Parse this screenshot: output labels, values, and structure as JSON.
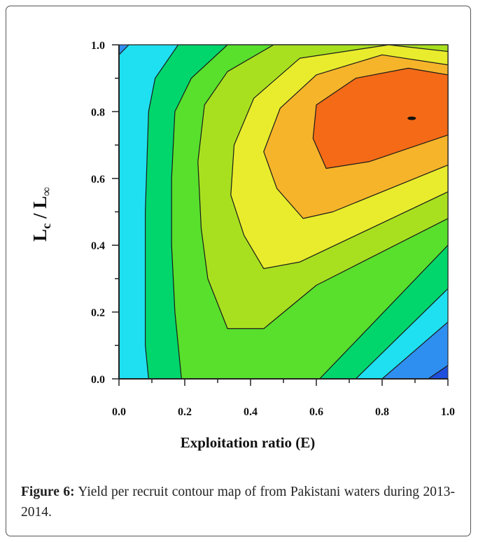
{
  "chart_data": {
    "type": "contour",
    "xlabel": "Exploitation ratio (E)",
    "ylabel_main": "L",
    "ylabel_sub": "c",
    "ylabel_mid": " / L",
    "ylabel_sub2": "∞",
    "xlim": [
      0.0,
      1.0
    ],
    "ylim": [
      0.0,
      1.0
    ],
    "xticks": [
      "0.0",
      "0.2",
      "0.4",
      "0.6",
      "0.8",
      "1.0"
    ],
    "yticks": [
      "0.0",
      "0.2",
      "0.4",
      "0.6",
      "0.8",
      "1.0"
    ],
    "grid": false,
    "levels": [
      {
        "color": "#1f4fdc",
        "points": [
          [
            0.0,
            0.0
          ],
          [
            1.0,
            0.0
          ],
          [
            1.0,
            1.0
          ],
          [
            0.0,
            1.0
          ]
        ]
      },
      {
        "color": "#2f8ff0",
        "points": [
          [
            0.0,
            0.0
          ],
          [
            0.94,
            0.0
          ],
          [
            1.0,
            0.04
          ],
          [
            1.0,
            1.0
          ],
          [
            0.0,
            1.0
          ]
        ]
      },
      {
        "color": "#1fe0f0",
        "points": [
          [
            0.0,
            0.0
          ],
          [
            0.8,
            0.0
          ],
          [
            1.0,
            0.17
          ],
          [
            1.0,
            1.0
          ],
          [
            0.03,
            1.0
          ],
          [
            0.0,
            0.97
          ]
        ]
      },
      {
        "color": "#00d66c",
        "points": [
          [
            0.09,
            0.0
          ],
          [
            0.72,
            0.0
          ],
          [
            1.0,
            0.27
          ],
          [
            1.0,
            1.0
          ],
          [
            0.18,
            1.0
          ],
          [
            0.11,
            0.9
          ],
          [
            0.09,
            0.8
          ],
          [
            0.08,
            0.5
          ],
          [
            0.08,
            0.1
          ]
        ]
      },
      {
        "color": "#58e02c",
        "points": [
          [
            0.19,
            0.0
          ],
          [
            0.61,
            0.0
          ],
          [
            1.0,
            0.4
          ],
          [
            1.0,
            1.0
          ],
          [
            0.33,
            1.0
          ],
          [
            0.22,
            0.9
          ],
          [
            0.17,
            0.8
          ],
          [
            0.16,
            0.6
          ],
          [
            0.16,
            0.4
          ],
          [
            0.17,
            0.2
          ]
        ]
      },
      {
        "color": "#a8e020",
        "points": [
          [
            0.33,
            0.15
          ],
          [
            0.44,
            0.15
          ],
          [
            0.6,
            0.28
          ],
          [
            1.0,
            0.48
          ],
          [
            1.0,
            1.0
          ],
          [
            0.47,
            1.0
          ],
          [
            0.33,
            0.92
          ],
          [
            0.26,
            0.82
          ],
          [
            0.24,
            0.65
          ],
          [
            0.25,
            0.45
          ],
          [
            0.27,
            0.3
          ]
        ]
      },
      {
        "color": "#e8ec2c",
        "points": [
          [
            0.44,
            0.33
          ],
          [
            0.55,
            0.35
          ],
          [
            1.0,
            0.56
          ],
          [
            1.0,
            0.98
          ],
          [
            0.82,
            1.0
          ],
          [
            0.55,
            0.96
          ],
          [
            0.41,
            0.84
          ],
          [
            0.35,
            0.7
          ],
          [
            0.34,
            0.55
          ],
          [
            0.38,
            0.43
          ]
        ]
      },
      {
        "color": "#f6b42a",
        "points": [
          [
            0.56,
            0.48
          ],
          [
            0.65,
            0.5
          ],
          [
            1.0,
            0.64
          ],
          [
            1.0,
            0.94
          ],
          [
            0.8,
            0.97
          ],
          [
            0.6,
            0.91
          ],
          [
            0.49,
            0.81
          ],
          [
            0.44,
            0.68
          ],
          [
            0.48,
            0.57
          ]
        ]
      },
      {
        "color": "#f46a16",
        "points": [
          [
            0.63,
            0.63
          ],
          [
            0.76,
            0.65
          ],
          [
            1.0,
            0.73
          ],
          [
            1.0,
            0.91
          ],
          [
            0.88,
            0.93
          ],
          [
            0.72,
            0.9
          ],
          [
            0.6,
            0.82
          ],
          [
            0.59,
            0.72
          ]
        ]
      }
    ],
    "marker": {
      "x": 0.89,
      "y": 0.78
    }
  },
  "caption": {
    "label": "Figure 6:",
    "text": " Yield per recruit contour map of from Pakistani waters during 2013-2014."
  }
}
